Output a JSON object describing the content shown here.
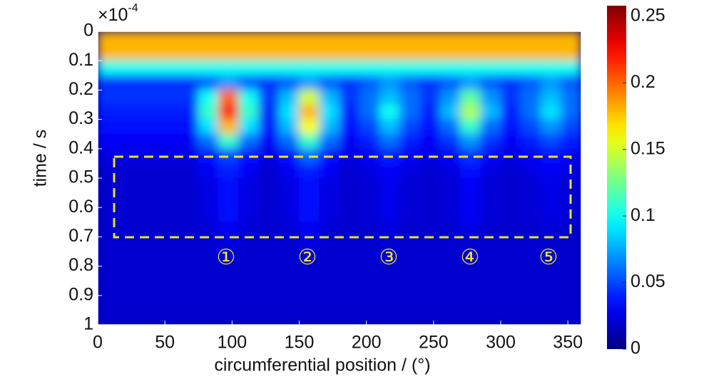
{
  "chart_data": {
    "type": "heatmap",
    "x_label": "circumferential position / (°)",
    "y_label": "time / s",
    "y_multiplier": {
      "base": "×10",
      "exponent": "-4"
    },
    "xlim": [
      0,
      360
    ],
    "xticks": [
      0,
      50,
      100,
      150,
      200,
      250,
      300,
      350
    ],
    "ylim": [
      0,
      1
    ],
    "yticks": [
      0,
      0.1,
      0.2,
      0.3,
      0.4,
      0.5,
      0.6,
      0.7,
      0.8,
      0.9,
      1
    ],
    "y_inverted": true,
    "zlim": [
      0,
      0.258
    ],
    "zticks": [
      0,
      0.05,
      0.1,
      0.15,
      0.2,
      0.25
    ],
    "colormap": "jet",
    "annotations": [
      "①",
      "②",
      "③",
      "④",
      "⑤"
    ],
    "xbins": [
      0,
      15,
      30,
      45,
      60,
      75,
      90,
      105,
      120,
      135,
      150,
      165,
      180,
      195,
      210,
      225,
      240,
      255,
      270,
      285,
      300,
      315,
      330,
      345,
      360
    ],
    "ybins": [
      0,
      0.05,
      0.1,
      0.15,
      0.2,
      0.25,
      0.3,
      0.35,
      0.4,
      0.45,
      0.5,
      0.55,
      0.6,
      0.65,
      0.7,
      0.75,
      0.8,
      0.85,
      0.9,
      0.95,
      1
    ],
    "z": [
      [
        0.18,
        0.18,
        0.18,
        0.18,
        0.18,
        0.18,
        0.18,
        0.18,
        0.18,
        0.18,
        0.18,
        0.18,
        0.18,
        0.18,
        0.18,
        0.18,
        0.18,
        0.18,
        0.18,
        0.18,
        0.18,
        0.18,
        0.18,
        0.18
      ],
      [
        0.18,
        0.18,
        0.18,
        0.18,
        0.18,
        0.18,
        0.18,
        0.18,
        0.18,
        0.18,
        0.18,
        0.18,
        0.18,
        0.18,
        0.18,
        0.18,
        0.18,
        0.18,
        0.18,
        0.18,
        0.18,
        0.18,
        0.18,
        0.18
      ],
      [
        0.1,
        0.1,
        0.1,
        0.1,
        0.1,
        0.1,
        0.1,
        0.1,
        0.1,
        0.1,
        0.1,
        0.1,
        0.1,
        0.1,
        0.1,
        0.1,
        0.1,
        0.1,
        0.1,
        0.1,
        0.1,
        0.1,
        0.1,
        0.1
      ],
      [
        0.045,
        0.045,
        0.045,
        0.045,
        0.045,
        0.055,
        0.07,
        0.055,
        0.045,
        0.055,
        0.07,
        0.055,
        0.045,
        0.055,
        0.07,
        0.055,
        0.045,
        0.055,
        0.07,
        0.055,
        0.045,
        0.055,
        0.07,
        0.055
      ],
      [
        0.045,
        0.045,
        0.045,
        0.045,
        0.045,
        0.1,
        0.2,
        0.1,
        0.045,
        0.08,
        0.15,
        0.08,
        0.045,
        0.06,
        0.08,
        0.06,
        0.045,
        0.07,
        0.12,
        0.07,
        0.045,
        0.06,
        0.08,
        0.06
      ],
      [
        0.04,
        0.04,
        0.04,
        0.04,
        0.04,
        0.11,
        0.22,
        0.11,
        0.04,
        0.09,
        0.18,
        0.09,
        0.04,
        0.06,
        0.1,
        0.06,
        0.04,
        0.08,
        0.14,
        0.08,
        0.04,
        0.06,
        0.09,
        0.06
      ],
      [
        0.035,
        0.035,
        0.035,
        0.035,
        0.035,
        0.09,
        0.18,
        0.09,
        0.035,
        0.08,
        0.16,
        0.08,
        0.035,
        0.05,
        0.08,
        0.05,
        0.035,
        0.06,
        0.11,
        0.06,
        0.035,
        0.05,
        0.07,
        0.05
      ],
      [
        0.03,
        0.03,
        0.03,
        0.03,
        0.03,
        0.06,
        0.11,
        0.06,
        0.03,
        0.06,
        0.11,
        0.06,
        0.03,
        0.04,
        0.06,
        0.04,
        0.03,
        0.045,
        0.07,
        0.045,
        0.03,
        0.04,
        0.05,
        0.04
      ],
      [
        0.025,
        0.025,
        0.025,
        0.025,
        0.025,
        0.035,
        0.05,
        0.035,
        0.025,
        0.035,
        0.06,
        0.035,
        0.025,
        0.03,
        0.04,
        0.03,
        0.025,
        0.03,
        0.045,
        0.03,
        0.025,
        0.03,
        0.035,
        0.03
      ],
      [
        0.02,
        0.02,
        0.02,
        0.02,
        0.02,
        0.03,
        0.04,
        0.03,
        0.02,
        0.03,
        0.04,
        0.03,
        0.02,
        0.025,
        0.03,
        0.025,
        0.02,
        0.025,
        0.035,
        0.025,
        0.02,
        0.025,
        0.03,
        0.025
      ],
      [
        0.02,
        0.02,
        0.02,
        0.02,
        0.02,
        0.025,
        0.035,
        0.025,
        0.02,
        0.025,
        0.035,
        0.025,
        0.02,
        0.022,
        0.028,
        0.022,
        0.02,
        0.022,
        0.03,
        0.022,
        0.02,
        0.022,
        0.026,
        0.022
      ],
      [
        0.02,
        0.02,
        0.02,
        0.02,
        0.02,
        0.025,
        0.035,
        0.025,
        0.02,
        0.025,
        0.035,
        0.025,
        0.02,
        0.022,
        0.028,
        0.022,
        0.02,
        0.022,
        0.03,
        0.022,
        0.02,
        0.022,
        0.026,
        0.022
      ],
      [
        0.02,
        0.02,
        0.02,
        0.02,
        0.02,
        0.025,
        0.035,
        0.025,
        0.02,
        0.025,
        0.035,
        0.025,
        0.02,
        0.022,
        0.028,
        0.022,
        0.02,
        0.022,
        0.03,
        0.022,
        0.02,
        0.022,
        0.026,
        0.022
      ],
      [
        0.02,
        0.02,
        0.02,
        0.02,
        0.02,
        0.022,
        0.03,
        0.022,
        0.02,
        0.022,
        0.03,
        0.022,
        0.02,
        0.02,
        0.024,
        0.02,
        0.02,
        0.02,
        0.025,
        0.02,
        0.02,
        0.02,
        0.022,
        0.02
      ],
      [
        0.02,
        0.02,
        0.02,
        0.02,
        0.02,
        0.02,
        0.025,
        0.02,
        0.02,
        0.02,
        0.025,
        0.02,
        0.02,
        0.02,
        0.02,
        0.02,
        0.02,
        0.02,
        0.02,
        0.02,
        0.02,
        0.02,
        0.02,
        0.02
      ],
      [
        0.02,
        0.02,
        0.02,
        0.02,
        0.02,
        0.02,
        0.02,
        0.02,
        0.02,
        0.02,
        0.02,
        0.02,
        0.02,
        0.02,
        0.02,
        0.02,
        0.02,
        0.02,
        0.02,
        0.02,
        0.02,
        0.02,
        0.02,
        0.02
      ],
      [
        0.02,
        0.02,
        0.02,
        0.02,
        0.02,
        0.02,
        0.02,
        0.02,
        0.02,
        0.02,
        0.02,
        0.02,
        0.02,
        0.02,
        0.02,
        0.02,
        0.02,
        0.02,
        0.02,
        0.02,
        0.02,
        0.02,
        0.02,
        0.02
      ],
      [
        0.02,
        0.02,
        0.02,
        0.02,
        0.02,
        0.02,
        0.02,
        0.02,
        0.02,
        0.02,
        0.02,
        0.02,
        0.02,
        0.02,
        0.02,
        0.02,
        0.02,
        0.02,
        0.02,
        0.02,
        0.02,
        0.02,
        0.02,
        0.02
      ],
      [
        0.02,
        0.02,
        0.02,
        0.02,
        0.02,
        0.02,
        0.02,
        0.02,
        0.02,
        0.02,
        0.02,
        0.02,
        0.02,
        0.02,
        0.02,
        0.02,
        0.02,
        0.02,
        0.02,
        0.02,
        0.02,
        0.02,
        0.02,
        0.02
      ],
      [
        0.02,
        0.02,
        0.02,
        0.02,
        0.02,
        0.02,
        0.02,
        0.02,
        0.02,
        0.02,
        0.02,
        0.02,
        0.02,
        0.02,
        0.02,
        0.02,
        0.02,
        0.02,
        0.02,
        0.02,
        0.02,
        0.02,
        0.02,
        0.02
      ]
    ]
  }
}
